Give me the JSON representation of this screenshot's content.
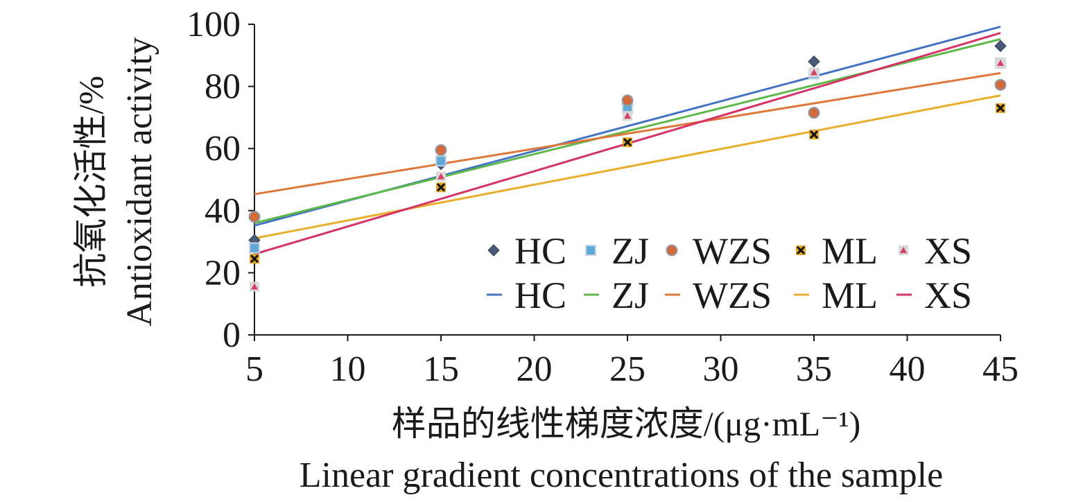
{
  "chart_data": {
    "type": "scatter",
    "title": "",
    "xlabel_cn": "样品的线性梯度浓度/(μg·mL⁻¹)",
    "xlabel_en": "Linear gradient concentrations of the sample",
    "ylabel_cn": "抗氧化活性/%",
    "ylabel_en": "Antioxidant activity",
    "xlim": [
      5,
      45
    ],
    "ylim": [
      0,
      100
    ],
    "x_ticks": [
      "5",
      "10",
      "15",
      "20",
      "25",
      "30",
      "35",
      "40",
      "45"
    ],
    "y_ticks": [
      "0",
      "20",
      "40",
      "60",
      "80",
      "100"
    ],
    "grid": false,
    "legend_position": "lower-right",
    "x": [
      5,
      15,
      25,
      35,
      45
    ],
    "series": [
      {
        "name": "HC",
        "marker": "diamond",
        "color": "#4a5a78",
        "values": [
          30.5,
          55,
          74,
          88,
          93
        ],
        "trend": [
          35.2,
          99.2
        ]
      },
      {
        "name": "ZJ",
        "marker": "square",
        "color": "#5fa8d8",
        "values": [
          28,
          56,
          73,
          84,
          87.5
        ],
        "trend": [
          36.0,
          95.2
        ]
      },
      {
        "name": "WZS",
        "marker": "circle",
        "color": "#d46a3a",
        "values": [
          38,
          59.5,
          75.5,
          71.5,
          80.5
        ],
        "trend": [
          45.3,
          84.3
        ]
      },
      {
        "name": "ML",
        "marker": "x",
        "color": "#e2a72a",
        "values": [
          24.5,
          47.5,
          62,
          64.5,
          73
        ],
        "trend": [
          31.1,
          77.1
        ]
      },
      {
        "name": "XS",
        "marker": "triangle",
        "color": "#d64065",
        "values": [
          15.5,
          51,
          70.5,
          84.5,
          87.5
        ],
        "trend": [
          26.0,
          97.2
        ]
      }
    ],
    "trend_colors": {
      "HC": "#4472c4",
      "ZJ": "#5cb848",
      "WZS": "#e0763a",
      "ML": "#e8ae2a",
      "XS": "#d63265"
    }
  }
}
